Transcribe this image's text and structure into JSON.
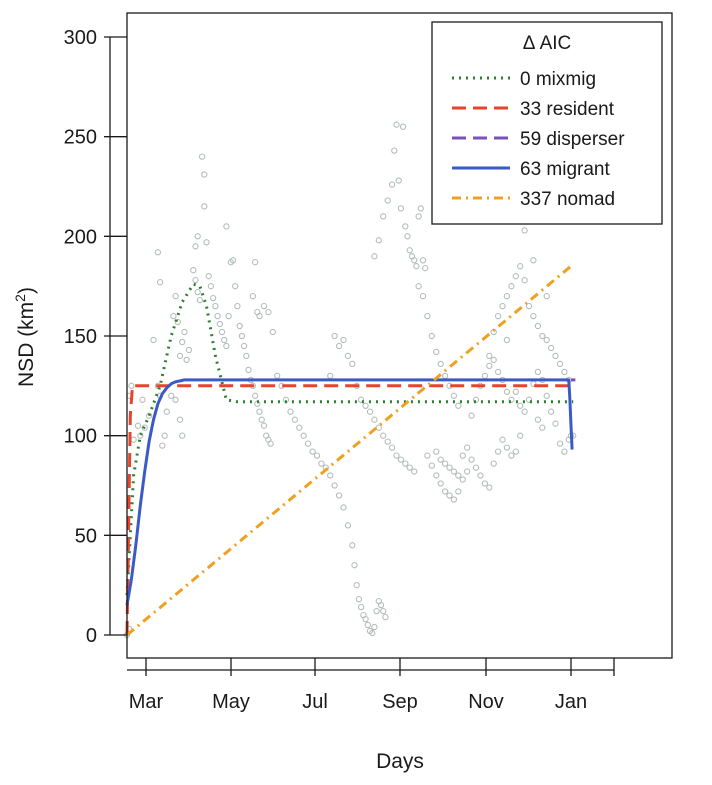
{
  "chart_data": {
    "type": "scatter",
    "xlabel": "Days",
    "ylabel_base": "NSD (km",
    "ylabel_sup": "2",
    "ylabel_close": ")",
    "ylim": [
      0,
      300
    ],
    "yticks": [
      0,
      50,
      100,
      150,
      200,
      250,
      300
    ],
    "xlim_days": [
      0,
      360
    ],
    "xticks": [
      {
        "day": 9,
        "label": "Mar"
      },
      {
        "day": 48,
        "label": "May"
      },
      {
        "day": 86,
        "label": "Jul"
      },
      {
        "day": 125,
        "label": "Sep"
      },
      {
        "day": 164,
        "label": "Nov"
      },
      {
        "day": 202,
        "label": "Jan"
      },
      {
        "day": 221,
        "label": ""
      }
    ],
    "legend": {
      "title": "Δ AIC",
      "placement": "top-right",
      "entries": [
        "0 mixmig",
        "33 resident",
        "59 disperser",
        "63 migrant",
        "337 nomad"
      ]
    },
    "colors": {
      "mixmig": "#2e7d32",
      "resident": "#e8432b",
      "disperser": "#7b52b8",
      "migrant": "#3a5bc7",
      "nomad": "#f0a020",
      "points": "#b4bcbc"
    },
    "series": [
      {
        "name": "0 mixmig",
        "style": "dotted",
        "x": [
          0,
          3,
          6,
          10,
          15,
          20,
          25,
          30,
          33,
          36,
          40,
          45,
          50,
          60,
          80,
          120,
          160,
          201,
          202
        ],
        "y": [
          20,
          80,
          100,
          110,
          125,
          150,
          167,
          176,
          175,
          165,
          140,
          118,
          117,
          117,
          117,
          117,
          117,
          117,
          117
        ]
      },
      {
        "name": "33 resident",
        "style": "dashed",
        "x": [
          0,
          0.8,
          1.5,
          2.5,
          10,
          60,
          120,
          180,
          201
        ],
        "y": [
          0,
          60,
          110,
          125,
          125,
          125,
          125,
          125,
          125
        ]
      },
      {
        "name": "59 disperser",
        "style": "dashed",
        "x": [
          201,
          203
        ],
        "y": [
          128,
          128
        ]
      },
      {
        "name": "63 migrant",
        "style": "solid",
        "x": [
          0,
          2,
          4,
          6,
          8,
          10,
          12,
          14,
          16,
          18,
          20,
          22,
          24,
          26,
          30,
          40,
          80,
          120,
          160,
          200,
          200.5,
          201,
          201.5
        ],
        "y": [
          15,
          28,
          45,
          65,
          82,
          97,
          108,
          116,
          121,
          124,
          126,
          127,
          127.5,
          128,
          128,
          128,
          128,
          128,
          128,
          128,
          118,
          105,
          93
        ]
      },
      {
        "name": "337 nomad",
        "style": "dotdash",
        "x": [
          0,
          201
        ],
        "y": [
          0,
          185
        ]
      }
    ],
    "points": [
      [
        0,
        0
      ],
      [
        1,
        3
      ],
      [
        1,
        120
      ],
      [
        2,
        125
      ],
      [
        3,
        98
      ],
      [
        5,
        105
      ],
      [
        6,
        100
      ],
      [
        7,
        118
      ],
      [
        8,
        104
      ],
      [
        10,
        110
      ],
      [
        12,
        148
      ],
      [
        14,
        125
      ],
      [
        15,
        120
      ],
      [
        16,
        95
      ],
      [
        17,
        100
      ],
      [
        18,
        112
      ],
      [
        20,
        120
      ],
      [
        22,
        118
      ],
      [
        24,
        108
      ],
      [
        25,
        100
      ],
      [
        14,
        192
      ],
      [
        15,
        177
      ],
      [
        21,
        160
      ],
      [
        22,
        170
      ],
      [
        23,
        157
      ],
      [
        24,
        140
      ],
      [
        25,
        147
      ],
      [
        26,
        152
      ],
      [
        27,
        138
      ],
      [
        28,
        143
      ],
      [
        30,
        183
      ],
      [
        31,
        178
      ],
      [
        32,
        172
      ],
      [
        33,
        168
      ],
      [
        31,
        195
      ],
      [
        32,
        200
      ],
      [
        34,
        240
      ],
      [
        35,
        231
      ],
      [
        35,
        215
      ],
      [
        36,
        197
      ],
      [
        37,
        180
      ],
      [
        38,
        175
      ],
      [
        39,
        169
      ],
      [
        40,
        165
      ],
      [
        41,
        160
      ],
      [
        42,
        156
      ],
      [
        43,
        152
      ],
      [
        44,
        148
      ],
      [
        45,
        145
      ],
      [
        46,
        160
      ],
      [
        47,
        187
      ],
      [
        48,
        188
      ],
      [
        45,
        205
      ],
      [
        49,
        175
      ],
      [
        50,
        165
      ],
      [
        51,
        155
      ],
      [
        52,
        150
      ],
      [
        53,
        145
      ],
      [
        54,
        140
      ],
      [
        55,
        133
      ],
      [
        56,
        128
      ],
      [
        57,
        125
      ],
      [
        58,
        120
      ],
      [
        59,
        116
      ],
      [
        60,
        112
      ],
      [
        61,
        108
      ],
      [
        62,
        105
      ],
      [
        63,
        100
      ],
      [
        64,
        98
      ],
      [
        65,
        96
      ],
      [
        58,
        187
      ],
      [
        57,
        170
      ],
      [
        59,
        162
      ],
      [
        60,
        160
      ],
      [
        62,
        165
      ],
      [
        64,
        162
      ],
      [
        66,
        152
      ],
      [
        68,
        130
      ],
      [
        70,
        125
      ],
      [
        72,
        118
      ],
      [
        74,
        112
      ],
      [
        76,
        108
      ],
      [
        78,
        104
      ],
      [
        80,
        100
      ],
      [
        82,
        96
      ],
      [
        84,
        92
      ],
      [
        86,
        90
      ],
      [
        88,
        86
      ],
      [
        90,
        84
      ],
      [
        92,
        80
      ],
      [
        94,
        75
      ],
      [
        96,
        70
      ],
      [
        98,
        64
      ],
      [
        100,
        55
      ],
      [
        102,
        45
      ],
      [
        103,
        35
      ],
      [
        104,
        25
      ],
      [
        105,
        18
      ],
      [
        106,
        14
      ],
      [
        107,
        10
      ],
      [
        108,
        8
      ],
      [
        109,
        5
      ],
      [
        110,
        2
      ],
      [
        111,
        1
      ],
      [
        112,
        4
      ],
      [
        113,
        12
      ],
      [
        114,
        17
      ],
      [
        115,
        15
      ],
      [
        116,
        12
      ],
      [
        117,
        9
      ],
      [
        92,
        130
      ],
      [
        94,
        150
      ],
      [
        96,
        145
      ],
      [
        98,
        148
      ],
      [
        100,
        140
      ],
      [
        102,
        136
      ],
      [
        104,
        125
      ],
      [
        106,
        118
      ],
      [
        108,
        115
      ],
      [
        110,
        112
      ],
      [
        112,
        108
      ],
      [
        114,
        104
      ],
      [
        116,
        100
      ],
      [
        118,
        97
      ],
      [
        120,
        94
      ],
      [
        122,
        90
      ],
      [
        124,
        88
      ],
      [
        126,
        86
      ],
      [
        128,
        84
      ],
      [
        130,
        82
      ],
      [
        112,
        190
      ],
      [
        114,
        198
      ],
      [
        116,
        210
      ],
      [
        118,
        218
      ],
      [
        120,
        226
      ],
      [
        121,
        243
      ],
      [
        122,
        256
      ],
      [
        123,
        228
      ],
      [
        124,
        214
      ],
      [
        125,
        255
      ],
      [
        126,
        205
      ],
      [
        127,
        200
      ],
      [
        128,
        193
      ],
      [
        129,
        190
      ],
      [
        130,
        188
      ],
      [
        131,
        185
      ],
      [
        132,
        210
      ],
      [
        133,
        214
      ],
      [
        134,
        188
      ],
      [
        135,
        184
      ],
      [
        132,
        175
      ],
      [
        134,
        170
      ],
      [
        136,
        160
      ],
      [
        138,
        150
      ],
      [
        140,
        142
      ],
      [
        142,
        136
      ],
      [
        144,
        130
      ],
      [
        146,
        125
      ],
      [
        148,
        120
      ],
      [
        150,
        115
      ],
      [
        136,
        90
      ],
      [
        138,
        85
      ],
      [
        140,
        80
      ],
      [
        142,
        76
      ],
      [
        144,
        72
      ],
      [
        146,
        70
      ],
      [
        148,
        68
      ],
      [
        150,
        72
      ],
      [
        152,
        78
      ],
      [
        154,
        82
      ],
      [
        140,
        92
      ],
      [
        142,
        88
      ],
      [
        144,
        86
      ],
      [
        146,
        84
      ],
      [
        148,
        82
      ],
      [
        150,
        80
      ],
      [
        152,
        90
      ],
      [
        154,
        94
      ],
      [
        156,
        88
      ],
      [
        158,
        84
      ],
      [
        160,
        80
      ],
      [
        162,
        76
      ],
      [
        164,
        74
      ],
      [
        166,
        86
      ],
      [
        168,
        92
      ],
      [
        170,
        98
      ],
      [
        172,
        94
      ],
      [
        174,
        90
      ],
      [
        176,
        92
      ],
      [
        178,
        100
      ],
      [
        156,
        110
      ],
      [
        158,
        118
      ],
      [
        160,
        125
      ],
      [
        162,
        130
      ],
      [
        164,
        135
      ],
      [
        166,
        138
      ],
      [
        168,
        132
      ],
      [
        170,
        128
      ],
      [
        172,
        122
      ],
      [
        174,
        118
      ],
      [
        164,
        140
      ],
      [
        166,
        152
      ],
      [
        168,
        160
      ],
      [
        170,
        165
      ],
      [
        172,
        170
      ],
      [
        174,
        175
      ],
      [
        176,
        180
      ],
      [
        178,
        185
      ],
      [
        180,
        178
      ],
      [
        182,
        165
      ],
      [
        184,
        160
      ],
      [
        186,
        155
      ],
      [
        188,
        150
      ],
      [
        190,
        148
      ],
      [
        192,
        144
      ],
      [
        194,
        140
      ],
      [
        196,
        136
      ],
      [
        198,
        132
      ],
      [
        200,
        128
      ],
      [
        201,
        100
      ],
      [
        176,
        122
      ],
      [
        178,
        115
      ],
      [
        180,
        112
      ],
      [
        182,
        118
      ],
      [
        184,
        126
      ],
      [
        186,
        132
      ],
      [
        188,
        128
      ],
      [
        190,
        120
      ],
      [
        192,
        112
      ],
      [
        194,
        106
      ],
      [
        180,
        203
      ],
      [
        184,
        188
      ],
      [
        190,
        170
      ],
      [
        196,
        96
      ],
      [
        198,
        92
      ],
      [
        200,
        98
      ],
      [
        202,
        100
      ],
      [
        186,
        108
      ],
      [
        188,
        104
      ],
      [
        172,
        148
      ]
    ]
  }
}
